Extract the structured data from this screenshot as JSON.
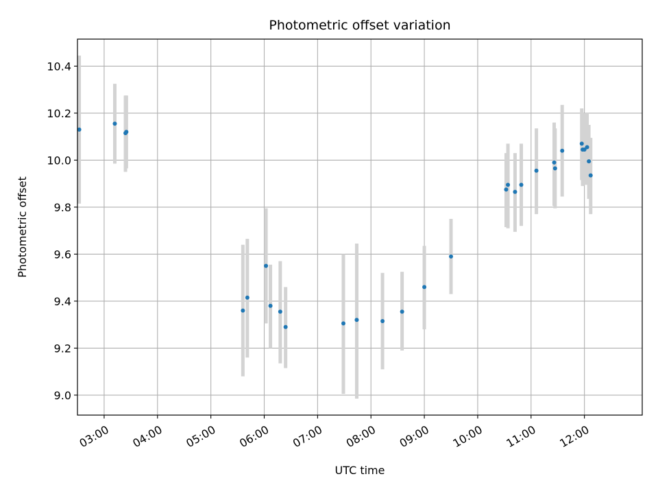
{
  "chart_data": {
    "type": "scatter",
    "title": "Photometric offset variation",
    "xlabel": "UTC time",
    "ylabel": "Photometric offset",
    "xlim": [
      "02:30",
      "13:05"
    ],
    "ylim": [
      8.915,
      10.515
    ],
    "grid": true,
    "x_ticks": [
      "03:00",
      "04:00",
      "05:00",
      "06:00",
      "07:00",
      "08:00",
      "09:00",
      "10:00",
      "11:00",
      "12:00"
    ],
    "y_ticks": [
      "9.0",
      "9.2",
      "9.4",
      "9.6",
      "9.8",
      "10.0",
      "10.2",
      "10.4"
    ],
    "colors": {
      "point": "#1f77b4",
      "errorbar": "#d3d3d3",
      "grid": "#b0b0b0"
    },
    "points": [
      {
        "x": "02:32",
        "y": 10.13,
        "lo": 9.815,
        "hi": 10.445
      },
      {
        "x": "03:12",
        "y": 10.155,
        "lo": 9.985,
        "hi": 10.325
      },
      {
        "x": "03:24",
        "y": 10.115,
        "lo": 9.95,
        "hi": 10.275
      },
      {
        "x": "03:25",
        "y": 10.12,
        "lo": 9.965,
        "hi": 10.275
      },
      {
        "x": "05:36",
        "y": 9.36,
        "lo": 9.08,
        "hi": 9.64
      },
      {
        "x": "05:41",
        "y": 9.415,
        "lo": 9.16,
        "hi": 9.665
      },
      {
        "x": "06:02",
        "y": 9.55,
        "lo": 9.305,
        "hi": 9.795
      },
      {
        "x": "06:07",
        "y": 9.38,
        "lo": 9.2,
        "hi": 9.555
      },
      {
        "x": "06:18",
        "y": 9.355,
        "lo": 9.135,
        "hi": 9.57
      },
      {
        "x": "06:24",
        "y": 9.29,
        "lo": 9.115,
        "hi": 9.46
      },
      {
        "x": "07:29",
        "y": 9.305,
        "lo": 9.005,
        "hi": 9.6
      },
      {
        "x": "07:44",
        "y": 9.32,
        "lo": 8.985,
        "hi": 9.645
      },
      {
        "x": "08:13",
        "y": 9.315,
        "lo": 9.11,
        "hi": 9.52
      },
      {
        "x": "08:35",
        "y": 9.355,
        "lo": 9.19,
        "hi": 9.525
      },
      {
        "x": "09:00",
        "y": 9.46,
        "lo": 9.28,
        "hi": 9.635
      },
      {
        "x": "09:30",
        "y": 9.59,
        "lo": 9.43,
        "hi": 9.75
      },
      {
        "x": "10:32",
        "y": 9.875,
        "lo": 9.715,
        "hi": 10.03
      },
      {
        "x": "10:34",
        "y": 9.895,
        "lo": 9.71,
        "hi": 10.07
      },
      {
        "x": "10:42",
        "y": 9.865,
        "lo": 9.695,
        "hi": 10.03
      },
      {
        "x": "10:49",
        "y": 9.895,
        "lo": 9.72,
        "hi": 10.07
      },
      {
        "x": "11:06",
        "y": 9.955,
        "lo": 9.77,
        "hi": 10.135
      },
      {
        "x": "11:26",
        "y": 9.99,
        "lo": 9.805,
        "hi": 10.16
      },
      {
        "x": "11:27",
        "y": 9.965,
        "lo": 9.795,
        "hi": 10.135
      },
      {
        "x": "11:35",
        "y": 10.04,
        "lo": 9.845,
        "hi": 10.235
      },
      {
        "x": "11:57",
        "y": 10.07,
        "lo": 9.915,
        "hi": 10.22
      },
      {
        "x": "11:58",
        "y": 10.045,
        "lo": 9.89,
        "hi": 10.2
      },
      {
        "x": "12:00",
        "y": 10.045,
        "lo": 9.895,
        "hi": 10.2
      },
      {
        "x": "12:03",
        "y": 10.055,
        "lo": 9.895,
        "hi": 10.2
      },
      {
        "x": "12:05",
        "y": 9.995,
        "lo": 9.835,
        "hi": 10.15
      },
      {
        "x": "12:07",
        "y": 9.935,
        "lo": 9.77,
        "hi": 10.095
      }
    ]
  }
}
